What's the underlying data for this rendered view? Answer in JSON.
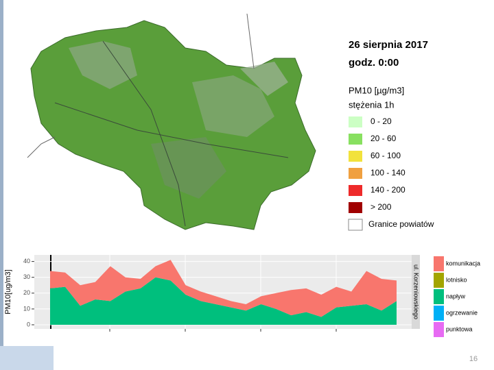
{
  "map_panel": {
    "date": "26 sierpnia 2017",
    "hour": "godz. 0:00",
    "unit": "PM10 [µg/m3]",
    "subtitle": "stężenia 1h",
    "legend": [
      {
        "label": "0 -  20",
        "color": "#ccffc4"
      },
      {
        "label": "20 -  60",
        "color": "#88e060"
      },
      {
        "label": "60 - 100",
        "color": "#f2e23c"
      },
      {
        "label": "100 - 140",
        "color": "#f0a040"
      },
      {
        "label": "140 - 200",
        "color": "#ee2a2a"
      },
      {
        "label": "> 200",
        "color": "#a00000"
      },
      {
        "label": "Granice powiatów",
        "color": "#ffffff"
      }
    ]
  },
  "chart_data": {
    "type": "stacked-area",
    "y_label": "PM10[ug/m3]",
    "side_label": "ul. Korzeniowskiego",
    "categories": [
      null,
      null,
      null,
      null,
      null,
      null,
      null,
      null,
      null,
      null,
      null,
      null,
      null,
      null,
      null,
      null,
      null,
      null,
      null,
      null,
      null,
      null,
      null,
      null
    ],
    "series": [
      {
        "name": "komunikacja",
        "color": "#f8766d",
        "values": [
          11,
          9,
          13,
          11,
          22,
          9,
          6,
          7,
          13,
          6,
          6,
          5,
          4,
          4,
          5,
          10,
          16,
          15,
          14,
          13,
          9,
          21,
          20,
          13
        ]
      },
      {
        "name": "lotnisko",
        "color": "#a3a500",
        "values": [
          0,
          0,
          0,
          0,
          0,
          0,
          0,
          0,
          0,
          0,
          0,
          0,
          0,
          0,
          0,
          0,
          0,
          0,
          0,
          0,
          0,
          0,
          0,
          0
        ]
      },
      {
        "name": "napływ",
        "color": "#00bf7d",
        "values": [
          23,
          24,
          12,
          16,
          15,
          21,
          23,
          30,
          28,
          19,
          15,
          13,
          11,
          9,
          13,
          10,
          6,
          8,
          5,
          11,
          12,
          13,
          9,
          15
        ]
      },
      {
        "name": "ogrzewanie",
        "color": "#00b0f6",
        "values": [
          0,
          0,
          0,
          0,
          0,
          0,
          0,
          0,
          0,
          0,
          0,
          0,
          0,
          0,
          0,
          0,
          0,
          0,
          0,
          0,
          0,
          0,
          0,
          0
        ]
      },
      {
        "name": "punktowa",
        "color": "#e76bf3",
        "values": [
          0,
          0,
          0,
          0,
          0,
          0,
          0,
          0,
          0,
          0,
          0,
          0,
          0,
          0,
          0,
          0,
          0,
          0,
          0,
          0,
          0,
          0,
          0,
          0
        ]
      }
    ],
    "ylim": [
      0,
      42
    ],
    "yticks": [
      0,
      10,
      20,
      30,
      40
    ],
    "grid": true
  },
  "footer": {
    "page_number": "16"
  }
}
